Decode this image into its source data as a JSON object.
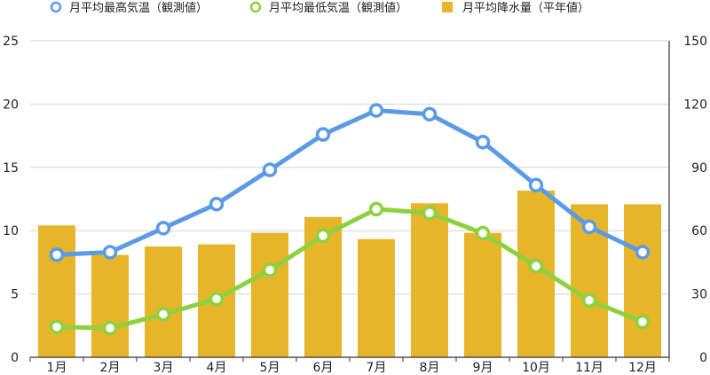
{
  "chart_data": {
    "type": "bar+line",
    "categories": [
      "1月",
      "2月",
      "3月",
      "4月",
      "5月",
      "6月",
      "7月",
      "8月",
      "9月",
      "10月",
      "11月",
      "12月"
    ],
    "series": [
      {
        "name": "月平均最高気温（観測値）",
        "kind": "line",
        "axis": "left",
        "color": "#5b9be6",
        "values": [
          8.1,
          8.3,
          10.2,
          12.1,
          14.8,
          17.6,
          19.5,
          19.2,
          17.0,
          13.6,
          10.3,
          8.3
        ]
      },
      {
        "name": "月平均最低気温（観測値）",
        "kind": "line",
        "axis": "left",
        "color": "#8ed13f",
        "values": [
          2.4,
          2.3,
          3.4,
          4.6,
          6.9,
          9.6,
          11.7,
          11.4,
          9.8,
          7.2,
          4.5,
          2.8
        ]
      },
      {
        "name": "月平均降水量（平年値）",
        "kind": "bar",
        "axis": "right",
        "color": "#e6b52a",
        "values": [
          62.5,
          48.5,
          52.5,
          53.5,
          59,
          66.5,
          56,
          73,
          59,
          79,
          72.5,
          72.5
        ]
      }
    ],
    "y_left": {
      "min": 0,
      "max": 25,
      "ticks": [
        0,
        5,
        10,
        15,
        20,
        25
      ]
    },
    "y_right": {
      "min": 0,
      "max": 150,
      "ticks": [
        0,
        30,
        60,
        90,
        120,
        150
      ]
    },
    "grid": true,
    "legend_position": "top"
  }
}
